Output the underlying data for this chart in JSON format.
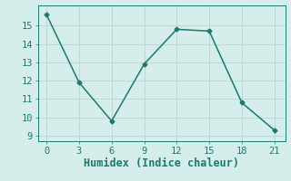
{
  "x": [
    0,
    3,
    6,
    9,
    12,
    15,
    18,
    21
  ],
  "y": [
    15.6,
    11.9,
    9.8,
    12.9,
    14.8,
    14.7,
    10.8,
    9.3
  ],
  "xlabel": "Humidex (Indice chaleur)",
  "xticks": [
    0,
    3,
    6,
    9,
    12,
    15,
    18,
    21
  ],
  "yticks": [
    9,
    10,
    11,
    12,
    13,
    14,
    15
  ],
  "ylim": [
    8.7,
    16.1
  ],
  "xlim": [
    -0.8,
    22.0
  ],
  "line_color": "#1a7a6e",
  "marker": "D",
  "marker_size": 2.5,
  "bg_color": "#d6eeeb",
  "grid_color": "#c0d8d5",
  "line_width": 1.1,
  "tick_color": "#1a7a6e",
  "label_color": "#1a7a6e",
  "tick_fontsize": 7.5,
  "xlabel_fontsize": 8.5
}
